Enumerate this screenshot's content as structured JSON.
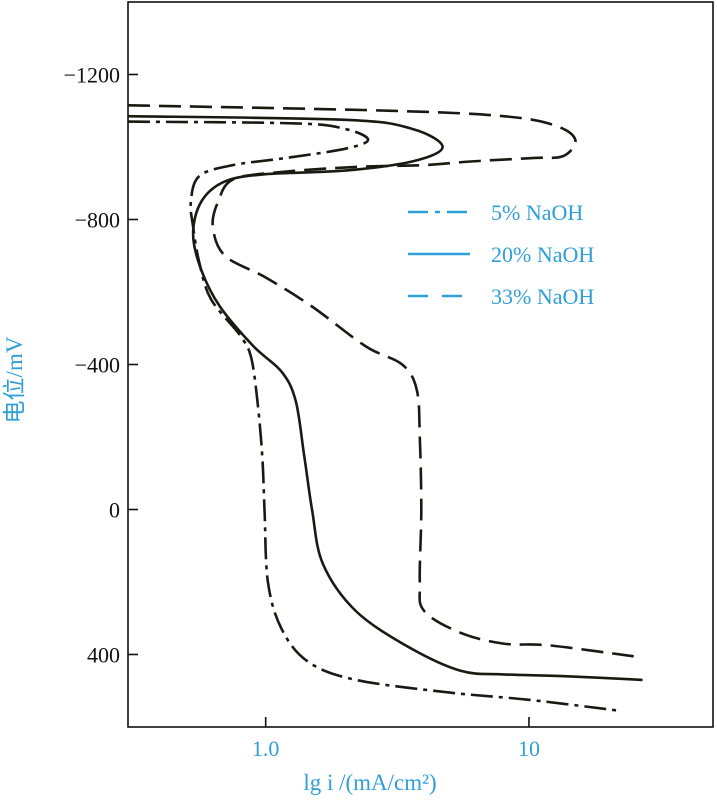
{
  "chart_data": {
    "type": "line",
    "title": "",
    "xlabel": "lg i /(mA/cm²)",
    "ylabel": "电位/mV",
    "x_scale": "log",
    "xlim": [
      0.3,
      50
    ],
    "ylim": [
      600,
      -1400
    ],
    "x_ticks": [
      {
        "value": 1.0,
        "label": "1.0"
      },
      {
        "value": 10,
        "label": "10"
      }
    ],
    "y_ticks": [
      {
        "value": -1200,
        "label": "−1200"
      },
      {
        "value": -800,
        "label": "−800"
      },
      {
        "value": -400,
        "label": "−400"
      },
      {
        "value": 0,
        "label": "0"
      },
      {
        "value": 400,
        "label": "400"
      }
    ],
    "grid": false,
    "legend_position": "top-right",
    "series": [
      {
        "name": "5% NaOH",
        "style": "dash-dot",
        "points": [
          [
            0.3,
            -1070
          ],
          [
            1.3,
            -1065
          ],
          [
            2.0,
            -1050
          ],
          [
            2.45,
            -1020
          ],
          [
            2.0,
            -995
          ],
          [
            1.2,
            -970
          ],
          [
            0.75,
            -950
          ],
          [
            0.56,
            -920
          ],
          [
            0.52,
            -850
          ],
          [
            0.53,
            -780
          ],
          [
            0.56,
            -680
          ],
          [
            0.62,
            -580
          ],
          [
            0.8,
            -480
          ],
          [
            0.88,
            -420
          ],
          [
            0.93,
            -300
          ],
          [
            0.97,
            -150
          ],
          [
            0.99,
            0
          ],
          [
            1.02,
            200
          ],
          [
            1.15,
            330
          ],
          [
            1.45,
            420
          ],
          [
            2.2,
            470
          ],
          [
            5.0,
            505
          ],
          [
            10.0,
            525
          ],
          [
            22.0,
            555
          ]
        ]
      },
      {
        "name": "20% NaOH",
        "style": "solid",
        "points": [
          [
            0.3,
            -1085
          ],
          [
            2.0,
            -1075
          ],
          [
            3.6,
            -1050
          ],
          [
            4.7,
            -1000
          ],
          [
            3.6,
            -960
          ],
          [
            2.0,
            -935
          ],
          [
            1.0,
            -925
          ],
          [
            0.7,
            -905
          ],
          [
            0.57,
            -850
          ],
          [
            0.53,
            -760
          ],
          [
            0.57,
            -660
          ],
          [
            0.67,
            -560
          ],
          [
            0.9,
            -450
          ],
          [
            1.15,
            -380
          ],
          [
            1.3,
            -300
          ],
          [
            1.4,
            -150
          ],
          [
            1.5,
            0
          ],
          [
            1.65,
            150
          ],
          [
            2.2,
            280
          ],
          [
            3.5,
            380
          ],
          [
            5.5,
            445
          ],
          [
            8.0,
            455
          ],
          [
            14.0,
            460
          ],
          [
            27.0,
            470
          ]
        ]
      },
      {
        "name": "33% NaOH",
        "style": "dashed",
        "points": [
          [
            0.3,
            -1115
          ],
          [
            3.0,
            -1100
          ],
          [
            8.0,
            -1085
          ],
          [
            12.5,
            -1060
          ],
          [
            15.0,
            -1020
          ],
          [
            13.5,
            -975
          ],
          [
            10.5,
            -970
          ],
          [
            6.0,
            -960
          ],
          [
            4.0,
            -950
          ],
          [
            2.2,
            -945
          ],
          [
            1.1,
            -930
          ],
          [
            0.75,
            -910
          ],
          [
            0.66,
            -850
          ],
          [
            0.63,
            -780
          ],
          [
            0.7,
            -700
          ],
          [
            1.0,
            -640
          ],
          [
            1.5,
            -560
          ],
          [
            2.4,
            -450
          ],
          [
            3.3,
            -400
          ],
          [
            3.75,
            -330
          ],
          [
            3.85,
            -200
          ],
          [
            3.9,
            0
          ],
          [
            3.85,
            200
          ],
          [
            4.0,
            280
          ],
          [
            5.5,
            340
          ],
          [
            8.0,
            370
          ],
          [
            12.0,
            375
          ],
          [
            25.0,
            405
          ]
        ]
      }
    ]
  }
}
